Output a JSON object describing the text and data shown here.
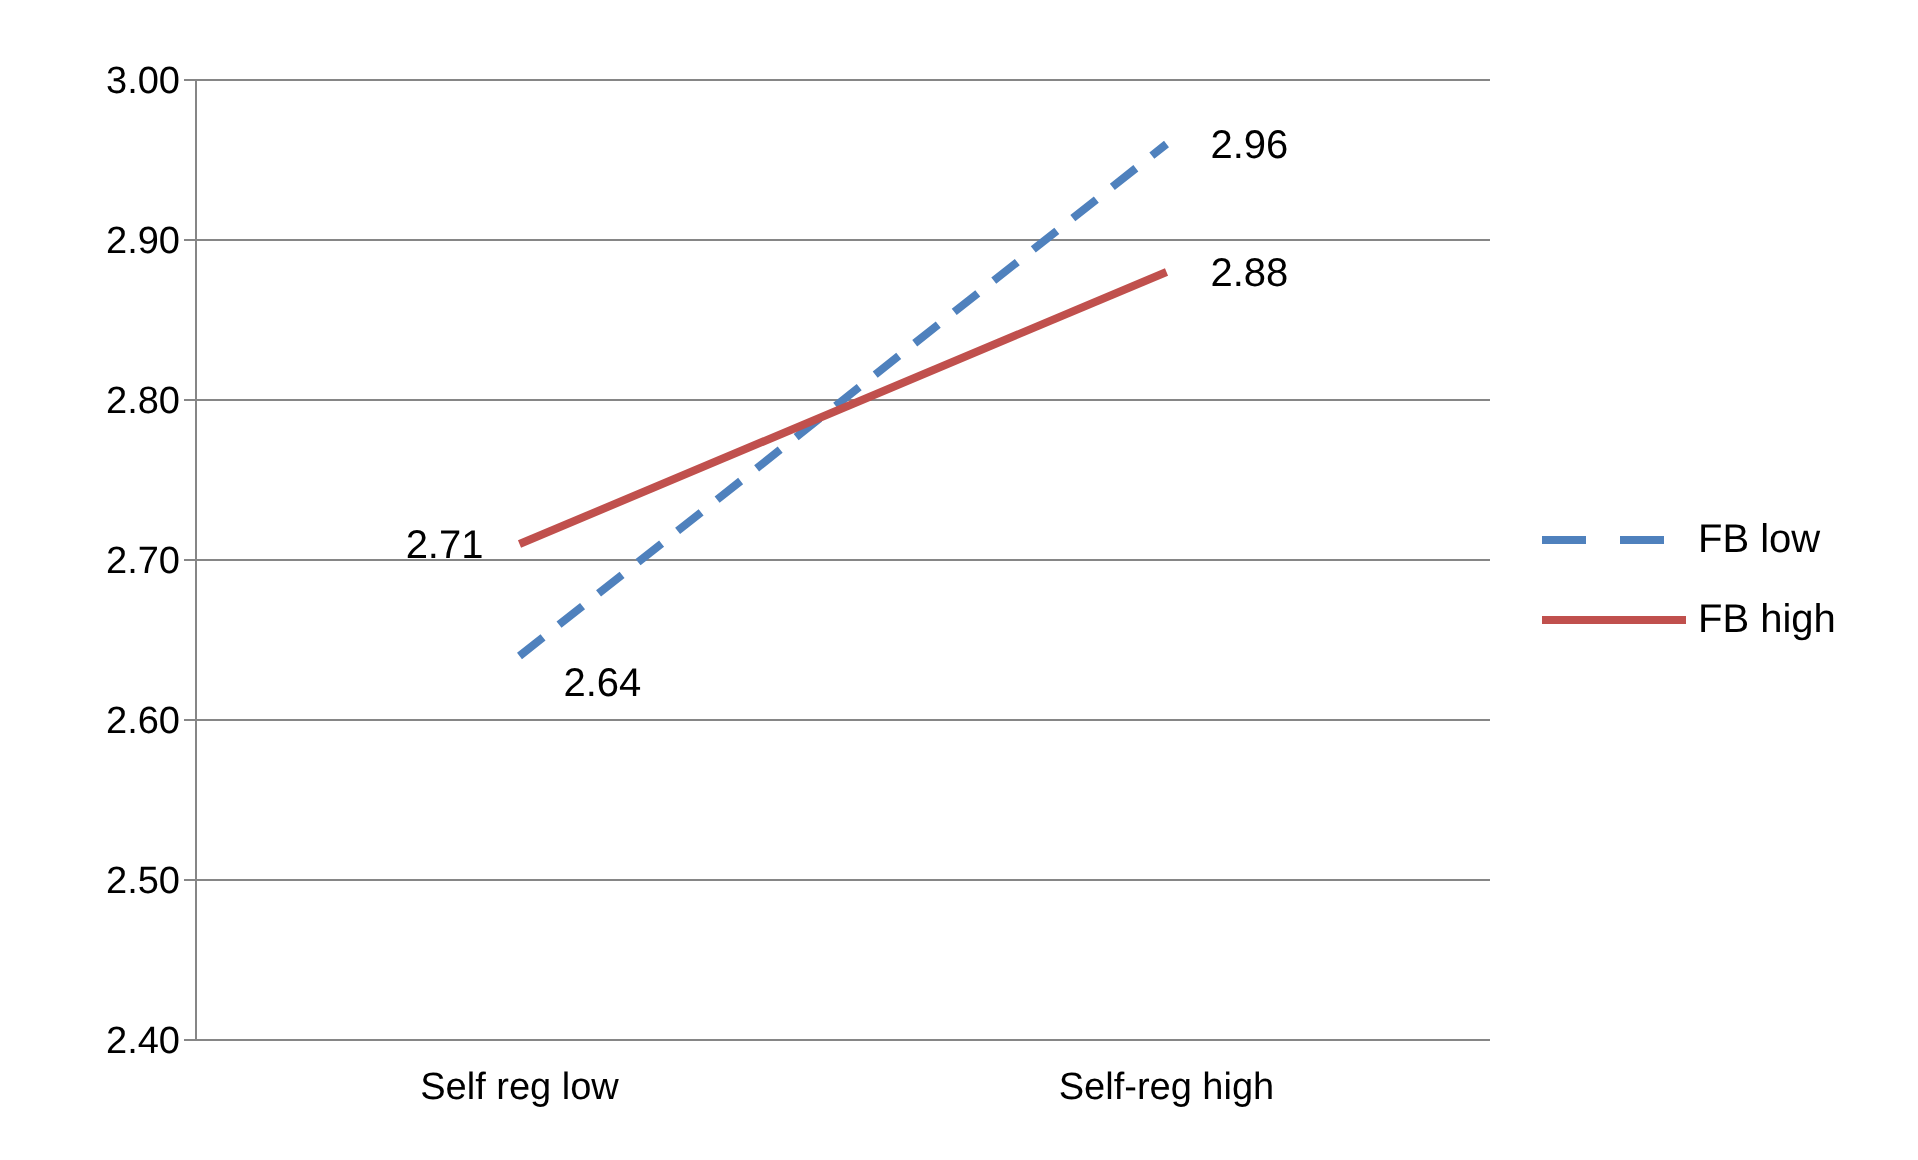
{
  "chart_data": {
    "type": "line",
    "categories": [
      "Self reg low",
      "Self-reg high"
    ],
    "series": [
      {
        "name": "FB low",
        "color": "#4f81bd",
        "values": [
          2.64,
          2.96
        ],
        "line_style": "dashed"
      },
      {
        "name": "FB high",
        "color": "#c0504d",
        "values": [
          2.71,
          2.88
        ],
        "line_style": "solid"
      }
    ],
    "ylim": [
      2.4,
      3.0
    ],
    "yticks": [
      {
        "value": 2.4,
        "label": "2.40"
      },
      {
        "value": 2.5,
        "label": "2.50"
      },
      {
        "value": 2.6,
        "label": "2.60"
      },
      {
        "value": 2.7,
        "label": "2.70"
      },
      {
        "value": 2.8,
        "label": "2.80"
      },
      {
        "value": 2.9,
        "label": "2.90"
      },
      {
        "value": 3.0,
        "label": "3.00"
      }
    ],
    "grid": "y",
    "legend": "right",
    "marker": "none",
    "data_labels": true
  }
}
